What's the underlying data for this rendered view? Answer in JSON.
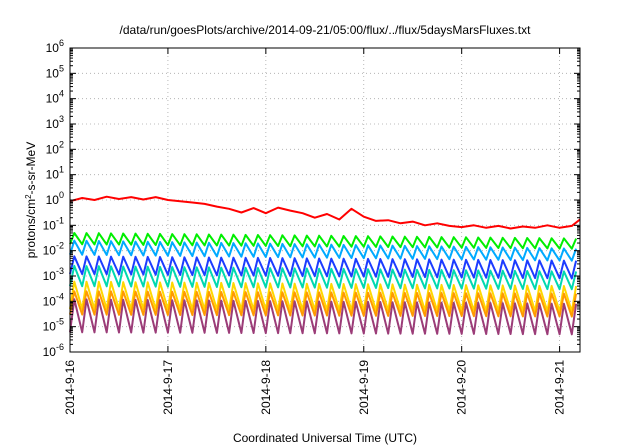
{
  "chart_data": {
    "type": "line",
    "title": "/data/run/goesPlots/archive/2014-09-21/05:00/flux/../flux/5daysMarsFluxes.txt",
    "xlabel": "Coordinated Universal Time (UTC)",
    "ylabel": "protons/cm²-s-sr-MeV",
    "ylabel_parts": {
      "prefix": "protons/cm",
      "sup": "2",
      "suffix": "-s-sr-MeV"
    },
    "x_ticks": [
      "2014-9-16",
      "2014-9-17",
      "2014-9-18",
      "2014-9-19",
      "2014-9-20",
      "2014-9-21"
    ],
    "xlim": [
      "2014-09-16T00:00",
      "2014-09-21T05:00"
    ],
    "y_scale": "log",
    "ylim": [
      1e-06,
      1000000.0
    ],
    "y_ticks": [
      {
        "base": "10",
        "exp": "-6"
      },
      {
        "base": "10",
        "exp": "-5"
      },
      {
        "base": "10",
        "exp": "-4"
      },
      {
        "base": "10",
        "exp": "-3"
      },
      {
        "base": "10",
        "exp": "-2"
      },
      {
        "base": "10",
        "exp": "-1"
      },
      {
        "base": "10",
        "exp": "0"
      },
      {
        "base": "10",
        "exp": "1"
      },
      {
        "base": "10",
        "exp": "2"
      },
      {
        "base": "10",
        "exp": "3"
      },
      {
        "base": "10",
        "exp": "4"
      },
      {
        "base": "10",
        "exp": "5"
      },
      {
        "base": "10",
        "exp": "6"
      }
    ],
    "grid": true,
    "series": [
      {
        "color": "#ff0000",
        "sawtooth": false,
        "points": [
          [
            "2014-09-16T00:00",
            0.9
          ],
          [
            "2014-09-16T03:00",
            1.2
          ],
          [
            "2014-09-16T06:00",
            1.0
          ],
          [
            "2014-09-16T09:00",
            1.35
          ],
          [
            "2014-09-16T12:00",
            1.1
          ],
          [
            "2014-09-16T15:00",
            1.3
          ],
          [
            "2014-09-16T18:00",
            1.05
          ],
          [
            "2014-09-16T21:00",
            1.3
          ],
          [
            "2014-09-17T00:00",
            1.0
          ],
          [
            "2014-09-17T03:00",
            0.9
          ],
          [
            "2014-09-17T06:00",
            0.8
          ],
          [
            "2014-09-17T09:00",
            0.7
          ],
          [
            "2014-09-17T12:00",
            0.55
          ],
          [
            "2014-09-17T15:00",
            0.45
          ],
          [
            "2014-09-17T18:00",
            0.32
          ],
          [
            "2014-09-17T21:00",
            0.48
          ],
          [
            "2014-09-18T00:00",
            0.3
          ],
          [
            "2014-09-18T03:00",
            0.5
          ],
          [
            "2014-09-18T06:00",
            0.38
          ],
          [
            "2014-09-18T09:00",
            0.3
          ],
          [
            "2014-09-18T12:00",
            0.2
          ],
          [
            "2014-09-18T15:00",
            0.28
          ],
          [
            "2014-09-18T18:00",
            0.17
          ],
          [
            "2014-09-18T21:00",
            0.45
          ],
          [
            "2014-09-19T00:00",
            0.22
          ],
          [
            "2014-09-19T03:00",
            0.15
          ],
          [
            "2014-09-19T06:00",
            0.16
          ],
          [
            "2014-09-19T09:00",
            0.12
          ],
          [
            "2014-09-19T12:00",
            0.14
          ],
          [
            "2014-09-19T15:00",
            0.1
          ],
          [
            "2014-09-19T18:00",
            0.12
          ],
          [
            "2014-09-19T21:00",
            0.095
          ],
          [
            "2014-09-20T00:00",
            0.085
          ],
          [
            "2014-09-20T03:00",
            0.1
          ],
          [
            "2014-09-20T06:00",
            0.08
          ],
          [
            "2014-09-20T09:00",
            0.095
          ],
          [
            "2014-09-20T12:00",
            0.075
          ],
          [
            "2014-09-20T15:00",
            0.09
          ],
          [
            "2014-09-20T18:00",
            0.08
          ],
          [
            "2014-09-20T21:00",
            0.1
          ],
          [
            "2014-09-21T00:00",
            0.08
          ],
          [
            "2014-09-21T03:00",
            0.095
          ],
          [
            "2014-09-21T05:00",
            0.17
          ]
        ]
      },
      {
        "color": "#00ee00",
        "sawtooth": true,
        "base": 0.018,
        "peak": 0.05,
        "base_end": 0.012,
        "peak_end": 0.03
      },
      {
        "color": "#00aaff",
        "sawtooth": true,
        "base": 0.007,
        "peak": 0.025,
        "base_end": 0.004,
        "peak_end": 0.012
      },
      {
        "color": "#1c3cff",
        "sawtooth": true,
        "base": 0.0012,
        "peak": 0.006,
        "base_end": 0.0008,
        "peak_end": 0.004
      },
      {
        "color": "#00d8b0",
        "sawtooth": true,
        "base": 0.0004,
        "peak": 0.0025,
        "base_end": 0.0003,
        "peak_end": 0.0015
      },
      {
        "color": "#ffd700",
        "sawtooth": true,
        "base": 5e-05,
        "peak": 0.0006,
        "base_end": 4e-05,
        "peak_end": 0.0004
      },
      {
        "color": "#ff9900",
        "sawtooth": true,
        "base": 3e-05,
        "peak": 0.00025,
        "base_end": 2.5e-05,
        "peak_end": 0.0002
      },
      {
        "color": "#9b3c78",
        "sawtooth": true,
        "base": 6e-06,
        "peak": 0.00012,
        "base_end": 5e-06,
        "peak_end": 8e-05
      }
    ]
  }
}
